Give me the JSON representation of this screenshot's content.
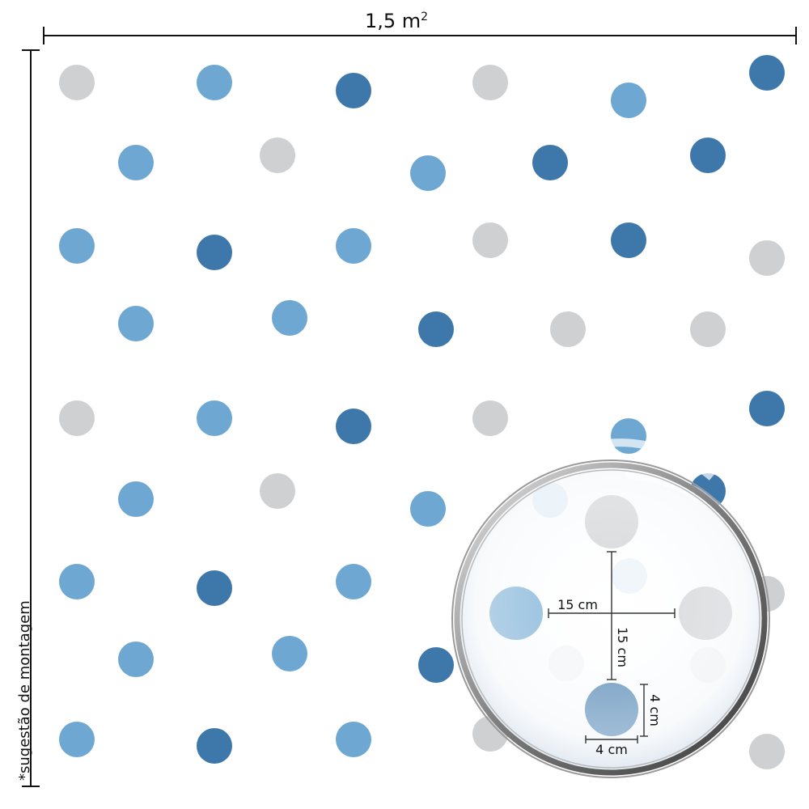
{
  "width_label": "1,5 m",
  "width_label_sup": "2",
  "side_note": "*sugestão de montagem",
  "colors": {
    "gray": "#cfd0d2",
    "light_blue": "#6ea8d2",
    "dark_blue": "#3e78aa",
    "line": "#111111"
  },
  "magnifier": {
    "horizontal_spacing": "15 cm",
    "vertical_spacing": "15 cm",
    "dot_height": "4 cm",
    "dot_width": "4 cm"
  }
}
